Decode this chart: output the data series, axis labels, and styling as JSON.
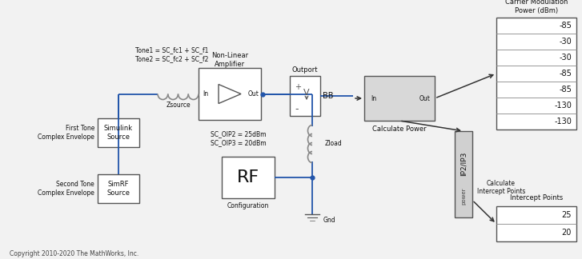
{
  "bg_color": "#f2f2f2",
  "box_face": "#ffffff",
  "box_face_gray": "#d8d8d8",
  "box_edge": "#555555",
  "line_blue": "#2255aa",
  "line_dark": "#333333",
  "text_dark": "#111111",
  "copyright": "Copyright 2010-2020 The MathWorks, Inc.",
  "simulink_source_label": "Simulink\nSource",
  "simrf_source_label": "SimRF\nSource",
  "first_tone_label": "First Tone\nComplex Envelope",
  "second_tone_label": "Second Tone\nComplex Envelope",
  "zsource_label": "Zsource",
  "amplifier_label": "Non-Linear\nAmplifier",
  "outport_label": "Outport",
  "bb_label": "BB",
  "calc_power_label": "Calculate Power",
  "zload_label": "Zload",
  "rf_label": "RF",
  "config_label": "Configuration",
  "gnd_label": "Gnd",
  "sc_params": "SC_OIP2 = 25dBm\nSC_OIP3 = 20dBm",
  "tone_labels": "Tone1 = SC_fc1 + SC_f1\nTone2 = SC_fc2 + SC_f2",
  "in_label": "In",
  "out_label": "Out",
  "ip2ip3_label": "IP2/IP3",
  "power_label": "power",
  "calc_intercept_label": "Calculate\nIntercept Points",
  "carrier_mod_label": "Carrier Modulation\nPower (dBm)",
  "carrier_values": [
    "-85",
    "-30",
    "-30",
    "-85",
    "-85",
    "-130",
    "-130"
  ],
  "intercept_label": "Intercept Points",
  "intercept_values": [
    "25",
    "20"
  ]
}
